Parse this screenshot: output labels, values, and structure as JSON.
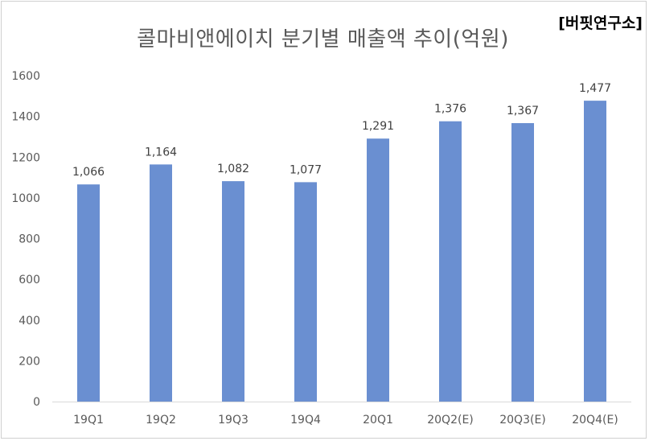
{
  "watermark": "[버핏연구소]",
  "chart_data": {
    "type": "bar",
    "title": "콜마비앤에이치 분기별 매출액 추이(억원)",
    "categories": [
      "19Q1",
      "19Q2",
      "19Q3",
      "19Q4",
      "20Q1",
      "20Q2(E)",
      "20Q3(E)",
      "20Q4(E)"
    ],
    "values": [
      1066,
      1164,
      1082,
      1077,
      1291,
      1376,
      1367,
      1477
    ],
    "data_labels": [
      "1,066",
      "1,164",
      "1,082",
      "1,077",
      "1,291",
      "1,376",
      "1,367",
      "1,477"
    ],
    "ylim": [
      0,
      1600
    ],
    "yticks": [
      0,
      200,
      400,
      600,
      800,
      1000,
      1200,
      1400,
      1600
    ],
    "xlabel": "",
    "ylabel": "",
    "grid": false,
    "bar_color": "#6a8fd1"
  }
}
